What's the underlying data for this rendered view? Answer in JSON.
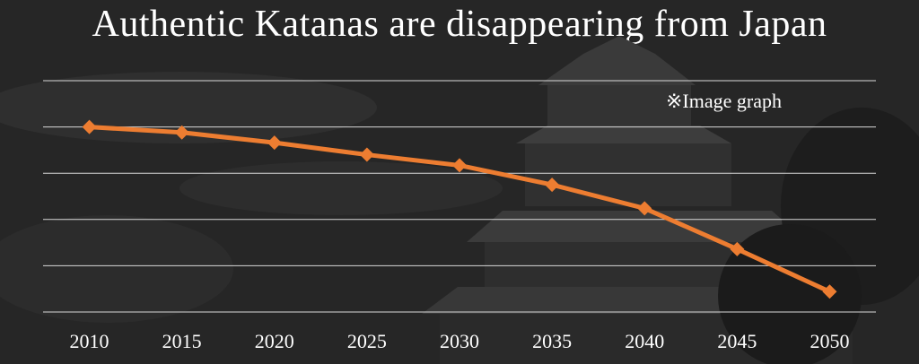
{
  "slide": {
    "title": "Authentic Katanas are disappearing from Japan",
    "note": "※Image graph"
  },
  "colors": {
    "background": "#262626",
    "castle": "#3a3a3a",
    "trees": "#1c1c1c",
    "line": "#ed7d31",
    "grid": "#d9d9d9",
    "text": "#ffffff"
  },
  "background_image": "japanese-castle-silhouette",
  "chart_data": {
    "type": "line",
    "title": "",
    "xlabel": "",
    "ylabel": "",
    "categories": [
      "2010",
      "2015",
      "2020",
      "2025",
      "2030",
      "2035",
      "2040",
      "2045",
      "2050"
    ],
    "series": [
      {
        "values": [
          100,
          98.8,
          96.6,
          94,
          91.7,
          87.5,
          82.4,
          73.6,
          64.4
        ],
        "marker": "diamond"
      }
    ],
    "ylim": [
      60,
      110
    ],
    "grid": true,
    "y_tick_labels_shown": false
  }
}
